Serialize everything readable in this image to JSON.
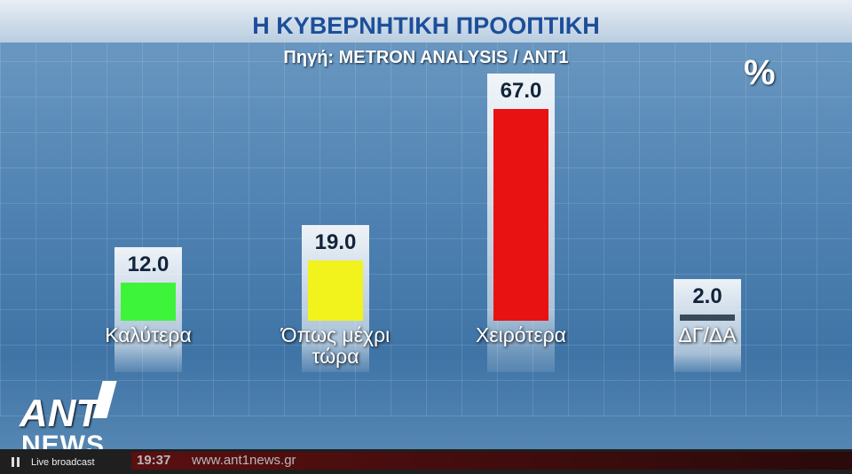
{
  "chart_data": {
    "type": "bar",
    "title": "Η ΚΥΒΕΡΝΗΤΙΚΗ ΠΡΟΟΠΤΙΚΗ",
    "subtitle": "Πηγή: METRON ANALYSIS / ANT1",
    "unit": "%",
    "categories": [
      "Καλύτερα",
      "Όπως μέχρι τώρα",
      "Χειρότερα",
      "ΔΓ/ΔΑ"
    ],
    "values": [
      12,
      19,
      67,
      2
    ],
    "value_labels": [
      "12.0",
      "19.0",
      "67.0",
      "2.0"
    ],
    "colors": [
      "#3ef43a",
      "#f2f21c",
      "#e81212",
      "#3a4a5a"
    ]
  },
  "logo": {
    "top": "ANT",
    "bottom": "NEWS"
  },
  "ticker": {
    "time": "19:37",
    "url": "www.ant1news.gr"
  },
  "player": {
    "status": "Live broadcast"
  }
}
